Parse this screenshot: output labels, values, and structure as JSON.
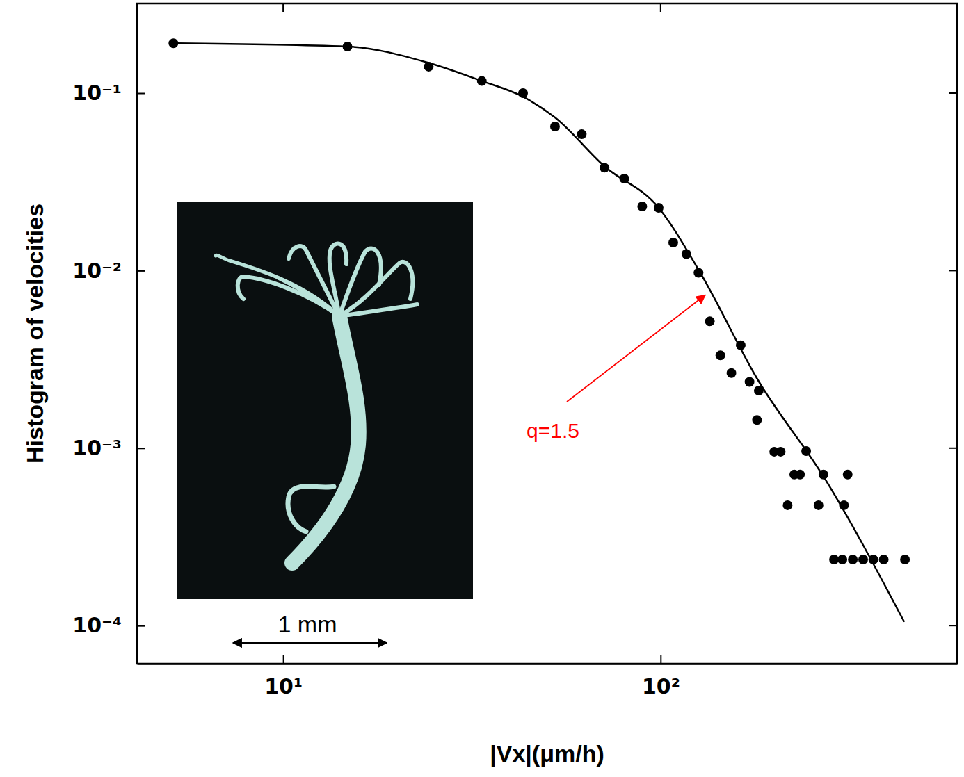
{
  "chart_data": {
    "type": "scatter",
    "xlabel": "|Vx|(μm/h)",
    "ylabel": "Histogram of velocities",
    "log": true,
    "grid": false,
    "xlim": [
      4.1,
      610
    ],
    "ylim": [
      6.1e-05,
      0.32
    ],
    "xticks": [
      {
        "value": 10,
        "label": "10¹"
      },
      {
        "value": 100,
        "label": "10²"
      }
    ],
    "yticks": [
      {
        "value": 0.1,
        "label": "10⁻¹"
      },
      {
        "value": 0.01,
        "label": "10⁻²"
      },
      {
        "value": 0.001,
        "label": "10⁻³"
      },
      {
        "value": 0.0001,
        "label": "10⁻⁴"
      }
    ],
    "series": [
      {
        "type": "scatter",
        "marker": "circle",
        "color": "#000000",
        "x": [
          5.12,
          14.8,
          24.3,
          33.6,
          43.2,
          52.5,
          61.8,
          71.0,
          80.1,
          89.4,
          98.8,
          108,
          117,
          126,
          135,
          144,
          154,
          163,
          172,
          182,
          180,
          200,
          208,
          226,
          234,
          217,
          243,
          262,
          270,
          306,
          313,
          288,
          303,
          323,
          344,
          366,
          390,
          444
        ],
        "values": [
          0.191,
          0.183,
          0.141,
          0.117,
          0.1,
          0.0649,
          0.0587,
          0.038,
          0.033,
          0.023,
          0.0226,
          0.0144,
          0.0124,
          0.00973,
          0.00518,
          0.00333,
          0.00265,
          0.0038,
          0.00236,
          0.00211,
          0.00144,
          0.000955,
          0.000955,
          0.00071,
          0.00071,
          0.000477,
          0.000963,
          0.000477,
          0.00071,
          0.000477,
          0.00071,
          0.000236,
          0.000236,
          0.000236,
          0.000236,
          0.000236,
          0.000236,
          0.000236
        ]
      },
      {
        "type": "line",
        "line_style": "solid",
        "color": "#000000",
        "x": [
          5.12,
          14.8,
          24.3,
          33.6,
          43.2,
          52.5,
          71.0,
          98.8,
          128,
          180,
          273,
          442
        ],
        "values": [
          0.191,
          0.183,
          0.148,
          0.117,
          0.0955,
          0.0729,
          0.0387,
          0.0226,
          0.00955,
          0.00247,
          0.000667,
          0.000105
        ]
      }
    ],
    "annotations": [
      {
        "text": "q=1.5",
        "color": "#ff0000"
      }
    ],
    "inset": {
      "scale_label": "1 mm"
    }
  }
}
